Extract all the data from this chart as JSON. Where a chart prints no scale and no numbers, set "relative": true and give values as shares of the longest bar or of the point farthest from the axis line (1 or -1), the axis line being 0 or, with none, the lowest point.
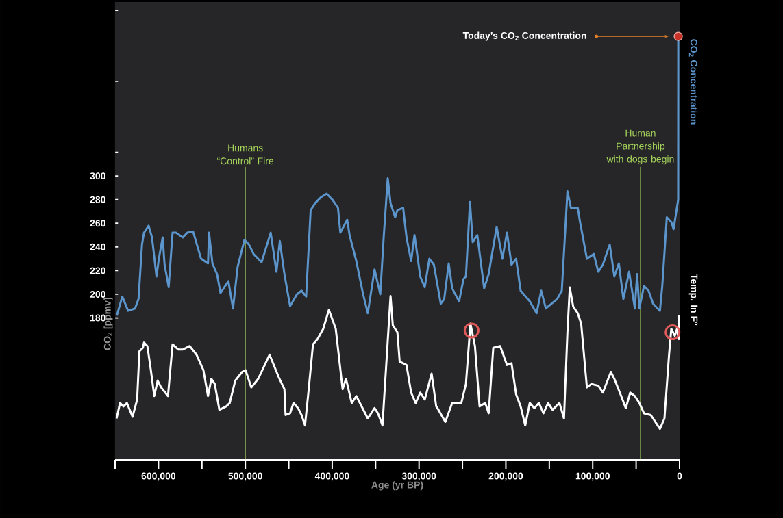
{
  "chart_data": [
    {
      "type": "line",
      "ylabel": "CO$_{2}$ [ppmv]",
      "tick_labels": "y",
      "xlim": [
        650000,
        0
      ],
      "ylim": [
        60,
        447
      ],
      "yticks": [
        180,
        200,
        220,
        240,
        260,
        280,
        300,
        {
          "value": 320,
          "label": null
        },
        {
          "value": 380,
          "label": null
        },
        {
          "value": 440,
          "label": null
        }
      ],
      "series": [
        {
          "name": "CO$_{2}$ Concentration",
          "color": "#5b95cc",
          "x": [
            648000,
            641700,
            635000,
            627000,
            623000,
            619000,
            616700,
            611400,
            607500,
            602300,
            599600,
            595200,
            593000,
            588300,
            583800,
            579900,
            572000,
            566800,
            560200,
            551000,
            543000,
            541800,
            537900,
            532600,
            528600,
            519500,
            514200,
            508900,
            501000,
            495800,
            490500,
            481300,
            470800,
            464200,
            460300,
            455000,
            448500,
            440600,
            435300,
            430000,
            424800,
            419600,
            413000,
            406400,
            399800,
            393300,
            390600,
            382700,
            380000,
            372200,
            364400,
            359000,
            351200,
            344600,
            340700,
            336000,
            332800,
            327500,
            324900,
            318300,
            314400,
            309100,
            305200,
            298600,
            293400,
            288100,
            282900,
            275000,
            271000,
            265800,
            261800,
            253900,
            248700,
            246000,
            241300,
            238200,
            232900,
            225000,
            219800,
            210600,
            204000,
            198700,
            193500,
            188200,
            183000,
            172500,
            164600,
            159300,
            154000,
            140900,
            135600,
            129100,
            125100,
            117200,
            114600,
            106700,
            98800,
            93600,
            88300,
            80400,
            75100,
            69900,
            64700,
            58100,
            51500,
            48900,
            46300,
            41000,
            35700,
            30500,
            22600,
            19900,
            14700,
            9500,
            6900,
            1600,
            1500
          ],
          "values": [
            182,
            198,
            186,
            188,
            196,
            242,
            252,
            258,
            248,
            215,
            230,
            248,
            225,
            206,
            252,
            252,
            248,
            252,
            253,
            230,
            226,
            252,
            226,
            217,
            201,
            211,
            188,
            223,
            246,
            242,
            234,
            227,
            252,
            219,
            245,
            217,
            190,
            200,
            203,
            198,
            271,
            277,
            282,
            285,
            280,
            273,
            252,
            263,
            250,
            228,
            200,
            184,
            221,
            200,
            248,
            298,
            277,
            265,
            271,
            273,
            248,
            228,
            250,
            215,
            206,
            230,
            225,
            192,
            196,
            226,
            205,
            194,
            213,
            215,
            278,
            244,
            250,
            205,
            217,
            257,
            230,
            252,
            225,
            230,
            203,
            194,
            184,
            203,
            188,
            196,
            203,
            287,
            273,
            273,
            261,
            230,
            234,
            219,
            225,
            242,
            215,
            226,
            196,
            219,
            188,
            217,
            188,
            207,
            203,
            192,
            186,
            207,
            265,
            261,
            255,
            280,
            418
          ]
        }
      ],
      "annotations": [
        "Today’s CO$_{2}$ Concentration"
      ],
      "ref_lines": [
        {
          "axis": "x",
          "value": 500000,
          "label": "Humans “Control” Fire",
          "color": "#a6d45a"
        },
        {
          "axis": "x",
          "value": 45000,
          "label": "Human Partnership with dogs begin",
          "color": "#a6d45a"
        }
      ]
    },
    {
      "type": "line",
      "relative": true,
      "xlabel": "Age (yr BP)",
      "xlim": [
        650000,
        0
      ],
      "xticks": [
        {
          "value": 650000,
          "label": null
        },
        {
          "value": 600000,
          "label": "600,000"
        },
        {
          "value": 550000,
          "label": null
        },
        {
          "value": 500000,
          "label": "500,000"
        },
        {
          "value": 450000,
          "label": null
        },
        {
          "value": 400000,
          "label": "400,000"
        },
        {
          "value": 350000,
          "label": null
        },
        {
          "value": 300000,
          "label": "300,000"
        },
        {
          "value": 250000,
          "label": null
        },
        {
          "value": 200000,
          "label": "200,000"
        },
        {
          "value": 150000,
          "label": null
        },
        {
          "value": 100000,
          "label": "100,000"
        },
        {
          "value": 50000,
          "label": null
        },
        0
      ],
      "series": [
        {
          "name": "Temp. In F°",
          "color": "#ffffff",
          "x": [
            648300,
            644300,
            640400,
            636400,
            629900,
            624600,
            622000,
            618000,
            616700,
            612800,
            608800,
            604900,
            601000,
            597000,
            589100,
            583800,
            577300,
            572000,
            564100,
            556200,
            548300,
            543000,
            539100,
            535200,
            529900,
            522000,
            518000,
            511600,
            503700,
            499700,
            493100,
            485200,
            472100,
            461600,
            455000,
            453700,
            448500,
            444500,
            439300,
            435300,
            431300,
            427400,
            422100,
            416900,
            410300,
            403800,
            395900,
            388000,
            384100,
            377500,
            372200,
            359000,
            351200,
            347300,
            342100,
            332800,
            330200,
            324900,
            322300,
            314400,
            309100,
            303900,
            298600,
            293400,
            285500,
            280200,
            277600,
            269700,
            261800,
            251300,
            246000,
            240800,
            235600,
            230300,
            223800,
            219800,
            214500,
            206600,
            198700,
            193500,
            188200,
            183000,
            177700,
            172500,
            167200,
            162000,
            156700,
            151400,
            146200,
            138300,
            133100,
            129100,
            126400,
            122500,
            117200,
            113300,
            106700,
            101500,
            93600,
            88300,
            79100,
            75100,
            67200,
            61900,
            56800,
            51500,
            46300,
            41000,
            33100,
            22600,
            17400,
            12100,
            9500,
            5500,
            2900,
            1000,
            500
          ],
          "values": [
            0.24,
            0.33,
            0.31,
            0.33,
            0.25,
            0.35,
            0.63,
            0.65,
            0.68,
            0.66,
            0.52,
            0.37,
            0.46,
            0.42,
            0.37,
            0.67,
            0.64,
            0.64,
            0.66,
            0.61,
            0.52,
            0.37,
            0.47,
            0.44,
            0.29,
            0.31,
            0.33,
            0.46,
            0.51,
            0.52,
            0.42,
            0.47,
            0.61,
            0.48,
            0.41,
            0.26,
            0.27,
            0.33,
            0.3,
            0.26,
            0.2,
            0.39,
            0.67,
            0.7,
            0.76,
            0.87,
            0.76,
            0.41,
            0.47,
            0.33,
            0.37,
            0.24,
            0.3,
            0.27,
            0.2,
            0.95,
            0.78,
            0.74,
            0.57,
            0.55,
            0.39,
            0.33,
            0.39,
            0.35,
            0.5,
            0.31,
            0.29,
            0.22,
            0.33,
            0.33,
            0.44,
            0.79,
            0.66,
            0.31,
            0.33,
            0.27,
            0.65,
            0.66,
            0.55,
            0.56,
            0.38,
            0.31,
            0.2,
            0.33,
            0.3,
            0.33,
            0.27,
            0.33,
            0.29,
            0.33,
            0.24,
            0.74,
            1,
            0.89,
            0.85,
            0.79,
            0.42,
            0.44,
            0.43,
            0.39,
            0.51,
            0.47,
            0.37,
            0.3,
            0.39,
            0.37,
            0.33,
            0.27,
            0.26,
            0.18,
            0.24,
            0.61,
            0.76,
            0.72,
            0.76,
            0.7,
            0.84
          ]
        },
        {
          "type": "scatter",
          "marker": "circle",
          "color": "#e05a5a",
          "x": [
            239500,
            8100
          ],
          "values": [
            0.75,
            0.74
          ]
        }
      ]
    }
  ]
}
